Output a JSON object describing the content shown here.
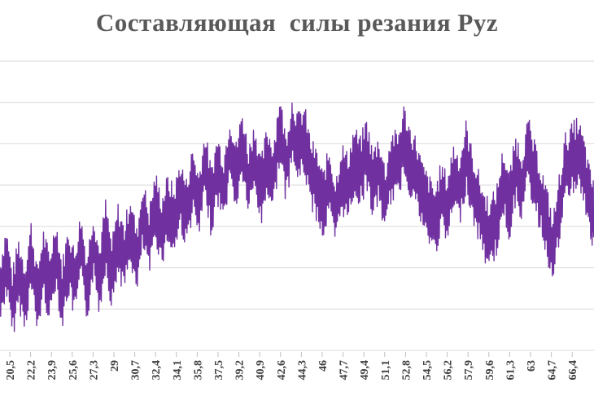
{
  "chart_data": {
    "type": "line",
    "title": "Составляющая  силы резания Pyz",
    "xlabel": "",
    "ylabel": "",
    "grid": true,
    "legend": "none",
    "line_color": "#7030a0",
    "grid_color": "#d9d9d9",
    "x_tick_labels": [
      "20,5",
      "22,2",
      "23,9",
      "25,6",
      "27,3",
      "29",
      "30,7",
      "32,4",
      "34,1",
      "35,8",
      "37,5",
      "39,2",
      "40,9",
      "42,6",
      "44,3",
      "46",
      "47,7",
      "49,4",
      "51,1",
      "52,8",
      "54,5",
      "56,2",
      "57,9",
      "59,6",
      "61,3",
      "63",
      "64,7",
      "66,4"
    ],
    "x_range": [
      20.0,
      67.8
    ],
    "y_range": [
      0,
      7
    ],
    "series": [
      {
        "x": [
          20.0,
          20.5,
          21.0,
          21.5,
          22.0,
          22.5,
          23.0,
          23.5,
          24.0,
          24.5,
          25.0,
          25.5,
          26.0,
          26.5,
          27.0,
          27.5,
          28.0,
          28.5,
          29.0,
          29.5,
          30.0,
          30.5,
          31.0,
          31.5,
          32.0,
          32.5,
          33.0,
          33.5,
          34.0,
          34.5,
          35.0,
          35.5,
          36.0,
          36.5,
          37.0,
          37.5,
          38.0,
          38.5,
          39.0,
          39.5,
          40.0,
          40.5,
          41.0,
          41.5,
          42.0,
          42.5,
          43.0,
          43.5,
          44.0,
          44.5,
          45.0,
          45.5,
          46.0,
          46.5,
          47.0,
          47.5,
          48.0,
          48.5,
          49.0,
          49.5,
          50.0,
          50.5,
          51.0,
          51.5,
          52.0,
          52.5,
          53.0,
          53.5,
          54.0,
          54.5,
          55.0,
          55.5,
          56.0,
          56.5,
          57.0,
          57.5,
          58.0,
          58.5,
          59.0,
          59.5,
          60.0,
          60.5,
          61.0,
          61.5,
          62.0,
          62.5,
          63.0,
          63.5,
          64.0,
          64.5,
          65.0,
          65.5,
          66.0,
          66.5,
          67.0,
          67.5,
          67.8
        ],
        "values": [
          1.4,
          2.2,
          1.1,
          1.9,
          1.3,
          2.3,
          1.2,
          2.1,
          1.5,
          2.4,
          1.3,
          2.2,
          1.6,
          2.5,
          1.5,
          2.6,
          1.7,
          2.8,
          1.8,
          2.7,
          2.2,
          3.0,
          2.1,
          3.3,
          2.6,
          3.5,
          2.9,
          3.4,
          3.1,
          3.8,
          3.3,
          4.1,
          3.5,
          4.5,
          3.6,
          4.4,
          3.9,
          4.9,
          4.2,
          5.0,
          4.1,
          4.7,
          3.8,
          4.6,
          4.2,
          5.4,
          4.4,
          5.3,
          4.9,
          5.1,
          4.3,
          4.0,
          3.5,
          4.1,
          3.3,
          4.2,
          3.9,
          4.6,
          4.3,
          4.8,
          4.0,
          4.4,
          3.6,
          4.5,
          4.4,
          5.1,
          4.6,
          4.3,
          3.7,
          3.4,
          3.1,
          3.7,
          3.4,
          4.2,
          3.9,
          4.7,
          4.0,
          3.5,
          3.0,
          2.8,
          3.2,
          4.1,
          3.5,
          4.4,
          4.0,
          4.8,
          4.2,
          3.7,
          3.1,
          2.4,
          3.4,
          4.4,
          4.6,
          4.8,
          4.3,
          3.5,
          3.2
        ]
      }
    ]
  }
}
